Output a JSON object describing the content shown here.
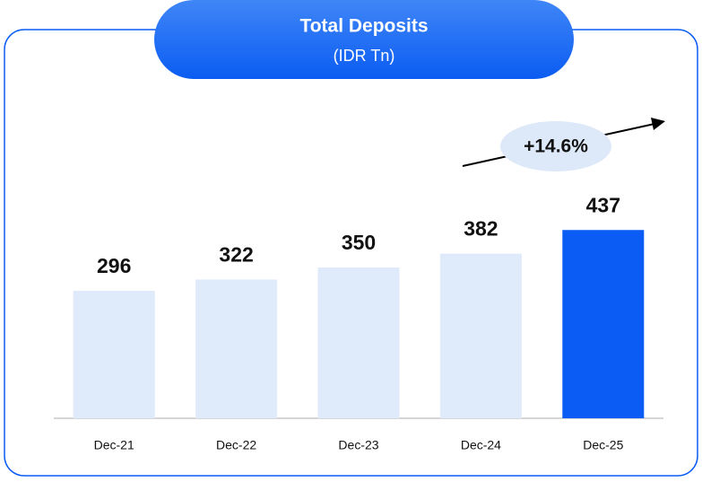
{
  "chart_data": {
    "type": "bar",
    "title": "Total Deposits",
    "subtitle": "(IDR Tn)",
    "categories": [
      "Dec-21",
      "Dec-22",
      "Dec-23",
      "Dec-24",
      "Dec-25"
    ],
    "values": [
      296,
      322,
      350,
      382,
      437
    ],
    "colors": [
      "#dfeafb",
      "#dfeafb",
      "#dfeafb",
      "#dfeafb",
      "#0a5cf5"
    ],
    "ylim": [
      0,
      500
    ],
    "annotation": "+14.6%"
  }
}
